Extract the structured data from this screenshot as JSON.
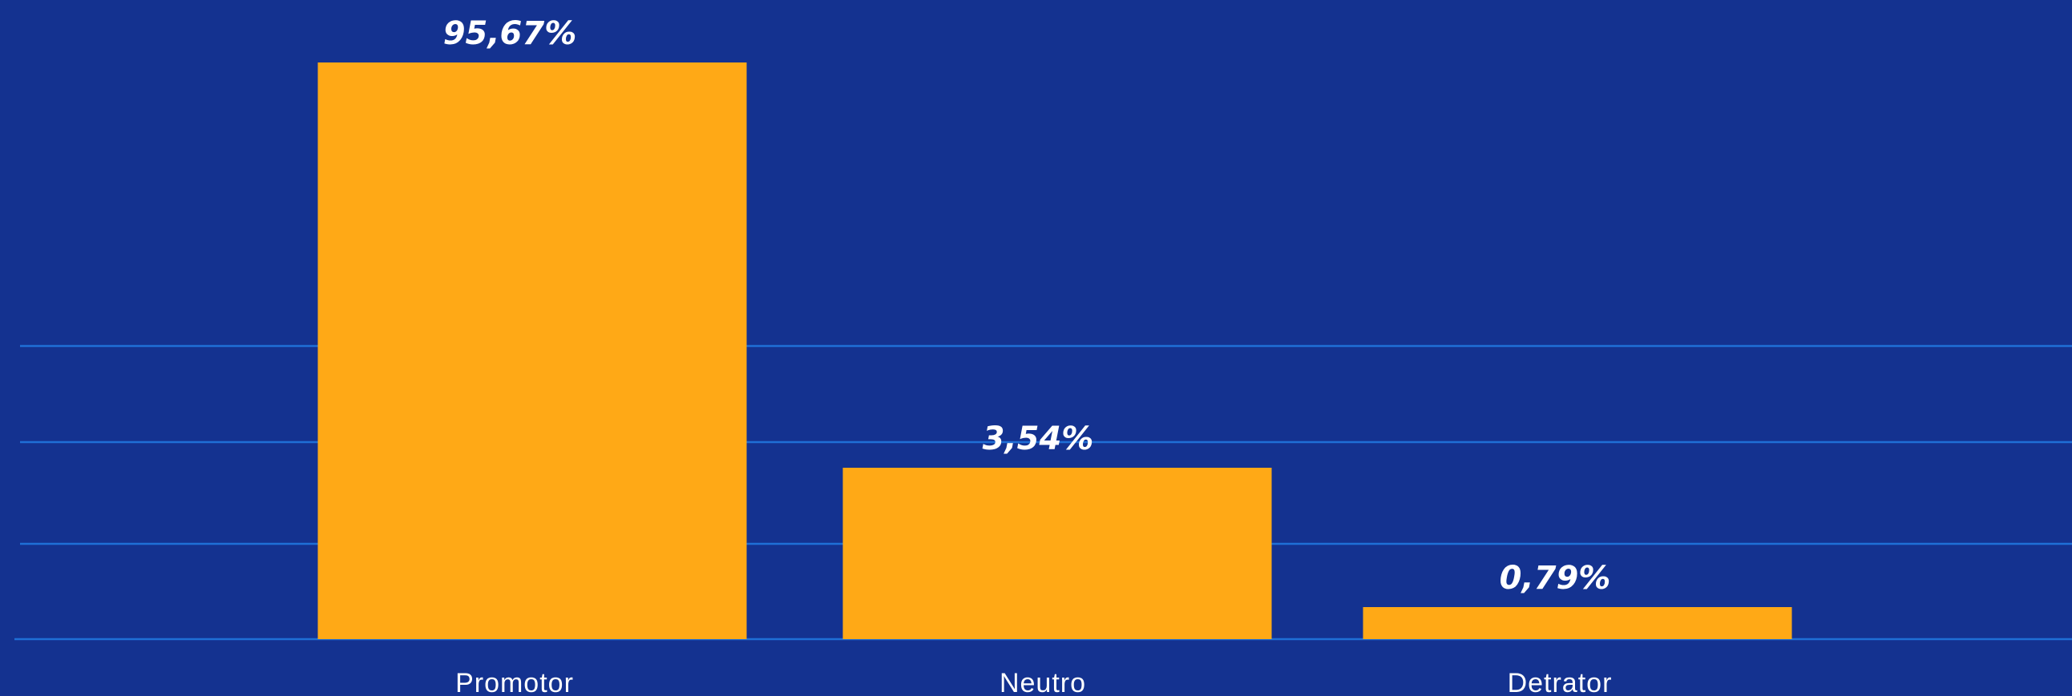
{
  "colors": {
    "background": "#143290",
    "bar": "#FFA916",
    "gridline": "#1f6fd6",
    "text": "#ffffff"
  },
  "chart_data": {
    "type": "bar",
    "categories": [
      "Promotor",
      "Neutro",
      "Detrator"
    ],
    "values": [
      95.67,
      3.54,
      0.79
    ],
    "value_labels": [
      "95,67%",
      "3,54%",
      "0,79%"
    ],
    "title": "",
    "xlabel": "",
    "ylabel": "",
    "axis_scale": "nonlinear",
    "grid": true,
    "legend": "none"
  }
}
